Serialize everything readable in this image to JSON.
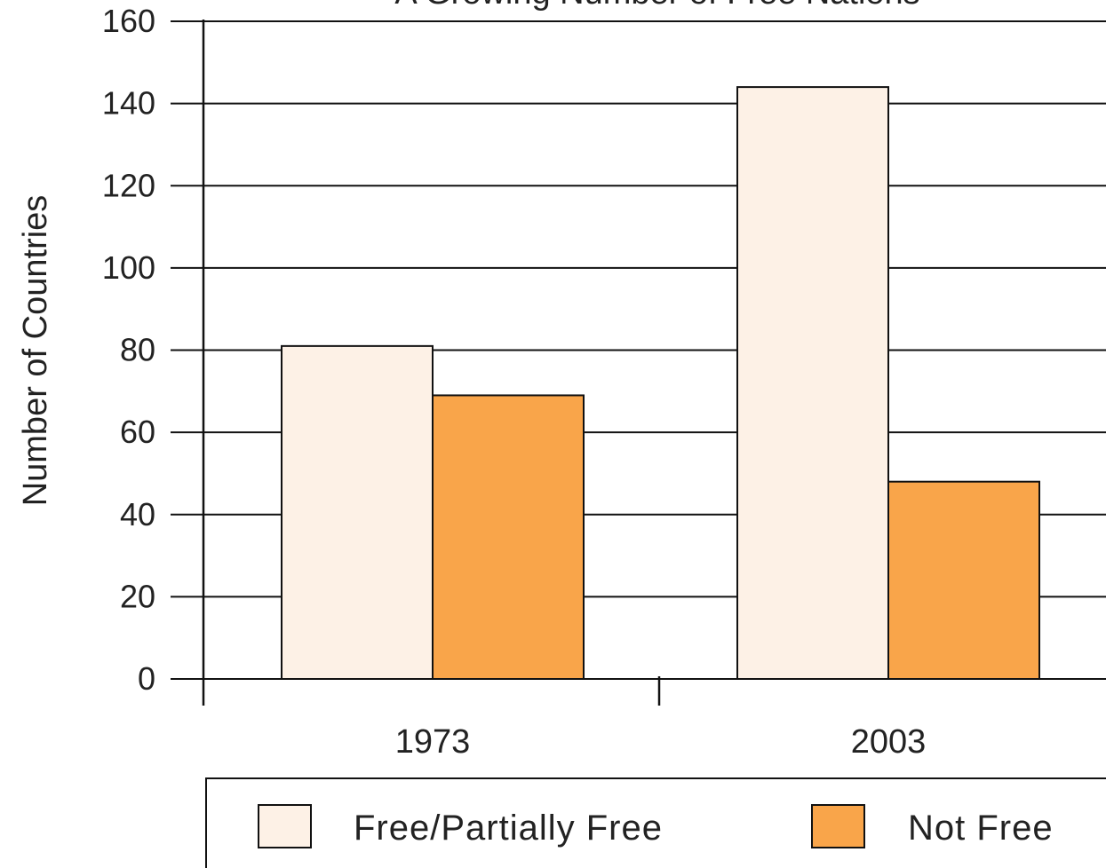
{
  "chart_data": {
    "type": "bar",
    "title": "A Growing Number of Free Nations",
    "ylabel": "Number of Countries",
    "xlabel": "",
    "categories": [
      "1973",
      "2003"
    ],
    "series": [
      {
        "name": "Free/Partially Free",
        "values": [
          81,
          144
        ],
        "color": "#fdf1e6"
      },
      {
        "name": "Not Free",
        "values": [
          69,
          48
        ],
        "color": "#f9a54a"
      }
    ],
    "ylim": [
      0,
      160
    ],
    "yticks": [
      0,
      20,
      40,
      60,
      80,
      100,
      120,
      140,
      160
    ],
    "grid": true,
    "legend_position": "bottom"
  }
}
